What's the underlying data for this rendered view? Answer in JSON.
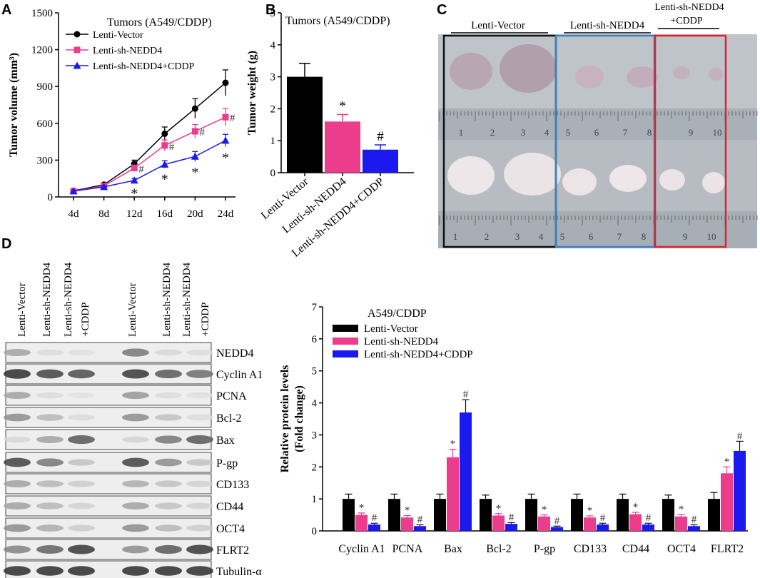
{
  "panels": {
    "a": "A",
    "b": "B",
    "c": "C",
    "d": "D"
  },
  "colors": {
    "vector": "#000000",
    "shNEDD4": "#ec3d8c",
    "shNEDD4_cddp": "#1a1aee",
    "photo_box_vector": "#111111",
    "photo_box_sh": "#3b82c4",
    "photo_box_cddp": "#d9262b"
  },
  "chart_data": [
    {
      "id": "A",
      "type": "line",
      "title": "Tumors (A549/CDDP)",
      "xlabel": "",
      "ylabel": "Tumor volume (mm³)",
      "categories": [
        "4d",
        "8d",
        "12d",
        "16d",
        "20d",
        "24d"
      ],
      "ylim": [
        0,
        1500
      ],
      "yticks": [
        "0",
        "300",
        "600",
        "900",
        "1200",
        "1500"
      ],
      "series": [
        {
          "name": "Lenti-Vector",
          "marker": "circle",
          "values": [
            50,
            100,
            270,
            515,
            720,
            930
          ],
          "errors": [
            8,
            12,
            30,
            55,
            80,
            105
          ]
        },
        {
          "name": "Lenti-sh-NEDD4",
          "marker": "square",
          "values": [
            48,
            90,
            235,
            420,
            535,
            650
          ],
          "errors": [
            6,
            10,
            25,
            45,
            55,
            70
          ]
        },
        {
          "name": "Lenti-sh-NEDD4+CDDP",
          "marker": "triangle",
          "values": [
            47,
            82,
            135,
            265,
            330,
            460
          ],
          "errors": [
            5,
            8,
            15,
            30,
            40,
            50
          ]
        }
      ],
      "annotations": {
        "star": "*",
        "hash": "#",
        "series2_marks": [
          "",
          "",
          "#",
          "#",
          "#",
          "#"
        ],
        "series3_marks": [
          "",
          "",
          "*",
          "*",
          "*",
          "*"
        ]
      }
    },
    {
      "id": "B",
      "type": "bar",
      "title": "Tumors (A549/CDDP)",
      "xlabel": "",
      "ylabel": "Tumor weight (g)",
      "categories": [
        "Lenti-Vector",
        "Lenti-sh-NEDD4",
        "Lenti-sh-NEDD4+CDDP"
      ],
      "values": [
        3.0,
        1.6,
        0.72
      ],
      "errors": [
        0.42,
        0.22,
        0.15
      ],
      "marks": [
        "",
        "*",
        "#"
      ],
      "ylim": [
        0,
        5
      ],
      "yticks": [
        "0",
        "1",
        "2",
        "3",
        "4",
        "5"
      ]
    },
    {
      "id": "D",
      "type": "bar",
      "title": "A549/CDDP",
      "xlabel": "",
      "ylabel": "Relative protein levels (Fold change)",
      "categories": [
        "Cyclin A1",
        "PCNA",
        "Bax",
        "Bcl-2",
        "P-gp",
        "CD133",
        "CD44",
        "OCT4",
        "FLRT2"
      ],
      "ylim": [
        0,
        7
      ],
      "yticks": [
        "0",
        "1",
        "2",
        "3",
        "4",
        "5",
        "6",
        "7"
      ],
      "series": [
        {
          "name": "Lenti-Vector",
          "values": [
            1.0,
            1.0,
            1.0,
            1.0,
            1.0,
            1.0,
            1.0,
            1.0,
            1.0
          ],
          "errors": [
            0.15,
            0.15,
            0.15,
            0.12,
            0.15,
            0.15,
            0.15,
            0.12,
            0.2
          ],
          "marks": [
            "",
            "",
            "",
            "",
            "",
            "",
            "",
            "",
            ""
          ]
        },
        {
          "name": "Lenti-sh-NEDD4",
          "values": [
            0.5,
            0.42,
            2.3,
            0.48,
            0.45,
            0.42,
            0.52,
            0.45,
            1.8
          ],
          "errors": [
            0.06,
            0.06,
            0.25,
            0.06,
            0.05,
            0.05,
            0.06,
            0.06,
            0.2
          ],
          "marks": [
            "*",
            "*",
            "*",
            "*",
            "*",
            "*",
            "*",
            "*",
            "*"
          ]
        },
        {
          "name": "Lenti-sh-NEDD4+CDDP",
          "values": [
            0.2,
            0.15,
            3.7,
            0.22,
            0.12,
            0.2,
            0.2,
            0.15,
            2.5
          ],
          "errors": [
            0.04,
            0.04,
            0.4,
            0.04,
            0.03,
            0.04,
            0.04,
            0.04,
            0.3
          ],
          "marks": [
            "#",
            "#",
            "#",
            "#",
            "#",
            "#",
            "#",
            "#",
            "#"
          ]
        }
      ]
    }
  ],
  "photo": {
    "groups": [
      "Lenti-Vector",
      "Lenti-sh-NEDD4",
      "Lenti-sh-NEDD4",
      "+CDDP"
    ],
    "ruler_top_numbers": [
      "1",
      "2",
      "3",
      "4",
      "5",
      "6",
      "7",
      "8",
      "9",
      "10"
    ],
    "ruler_bottom_numbers": [
      "1",
      "2",
      "3",
      "4",
      "5",
      "6",
      "7",
      "8",
      "9",
      "10"
    ]
  },
  "blot": {
    "lanes": [
      "Lenti-Vector",
      "Lenti-sh-NEDD4",
      "Lenti-sh-NEDD4",
      "+CDDP",
      "Lenti-Vector",
      "Lenti-sh-NEDD4",
      "Lenti-sh-NEDD4",
      "+CDDP"
    ],
    "proteins": [
      "NEDD4",
      "Cyclin A1",
      "PCNA",
      "Bcl-2",
      "Bax",
      "P-gp",
      "CD133",
      "CD44",
      "OCT4",
      "FLRT2",
      "Tubulin-α"
    ],
    "intensity": [
      [
        0.35,
        0.08,
        0.06,
        0.55,
        0.1,
        0.08
      ],
      [
        0.9,
        0.8,
        0.75,
        0.85,
        0.7,
        0.6
      ],
      [
        0.35,
        0.08,
        0.05,
        0.4,
        0.08,
        0.06
      ],
      [
        0.45,
        0.25,
        0.08,
        0.45,
        0.2,
        0.08
      ],
      [
        0.1,
        0.35,
        0.7,
        0.12,
        0.55,
        0.7
      ],
      [
        0.8,
        0.55,
        0.2,
        0.8,
        0.45,
        0.2
      ],
      [
        0.35,
        0.25,
        0.15,
        0.3,
        0.2,
        0.12
      ],
      [
        0.35,
        0.25,
        0.12,
        0.35,
        0.2,
        0.12
      ],
      [
        0.45,
        0.3,
        0.15,
        0.45,
        0.25,
        0.15
      ],
      [
        0.5,
        0.65,
        0.85,
        0.45,
        0.7,
        0.85
      ],
      [
        0.9,
        0.9,
        0.9,
        0.9,
        0.9,
        0.9
      ]
    ]
  }
}
